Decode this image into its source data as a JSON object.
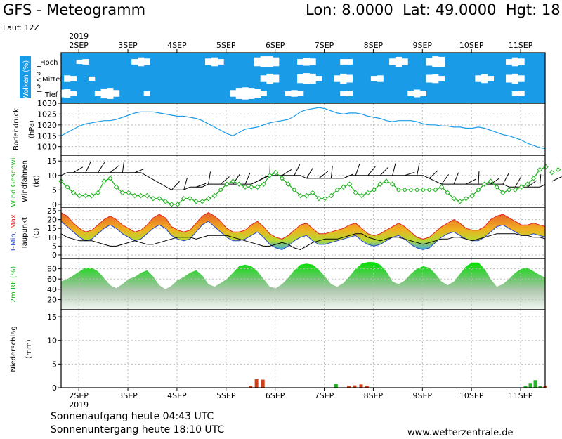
{
  "header": {
    "title": "GFS - Meteogramm",
    "coords": "Lon: 8.0000  Lat: 49.0000  Hgt: 18",
    "run": "Lauf: 12Z",
    "year": "2019"
  },
  "dates": [
    "2SEP",
    "3SEP",
    "4SEP",
    "5SEP",
    "6SEP",
    "7SEP",
    "8SEP",
    "9SEP",
    "10SEP",
    "11SEP"
  ],
  "footer": {
    "sunrise": "Sonnenaufgang heute 04:43 UTC",
    "sunset": "Sonnenuntergang heute 18:10 UTC",
    "site": "www.wetterzentrale.de"
  },
  "colors": {
    "cloud_bg": "#1a9be8",
    "pressure": "#1a9be8",
    "wind": "#22b422",
    "tmin": "#2244cc",
    "tmax": "#e02020",
    "precip_rain": "#d0401a",
    "precip_conv": "#22b422"
  },
  "chart_data": [
    {
      "type": "area",
      "panel": "clouds",
      "ylabel": "Wolken (%)",
      "yaxis_side_label": "Level",
      "levels": [
        "Hoch",
        "Mittel",
        "Tief"
      ],
      "x_start_day": 1.64,
      "x_step_h": 3,
      "clear_high": [
        0,
        0,
        0,
        0.2,
        0.3,
        0,
        0,
        0,
        0,
        0,
        0,
        0,
        0.3,
        0.6,
        0.4,
        0,
        0,
        0,
        0,
        0,
        0,
        0,
        0,
        0,
        0.4,
        0.6,
        0.3,
        0,
        0,
        0,
        0,
        0,
        0.6,
        0.8,
        0.8,
        0.6,
        0,
        0,
        0,
        0.3,
        0.5,
        0.4,
        0,
        0,
        0,
        0,
        0.3,
        0.3,
        0,
        0,
        0,
        0,
        0,
        0,
        0.4,
        0.7,
        0.4,
        0,
        0,
        0,
        0.5,
        0.8,
        0.7,
        0,
        0,
        0,
        0,
        0,
        0,
        0,
        0,
        0,
        0,
        0.3,
        0.6,
        0.4,
        0,
        0,
        0,
        0,
        0,
        0
      ],
      "clear_mid": [
        0,
        0.4,
        0.3,
        0,
        0,
        0.2,
        0,
        0,
        0,
        0,
        0,
        0,
        0,
        0,
        0,
        0,
        0,
        0,
        0,
        0,
        0,
        0,
        0,
        0,
        0,
        0,
        0,
        0,
        0,
        0,
        0,
        0,
        0,
        0.4,
        0.7,
        0.5,
        0,
        0,
        0,
        0.6,
        0.8,
        0.7,
        0.3,
        0,
        0,
        0.4,
        0.7,
        0.5,
        0,
        0,
        0,
        0.3,
        0.4,
        0,
        0,
        0,
        0,
        0,
        0,
        0,
        0.5,
        0.6,
        0.3,
        0,
        0,
        0,
        0,
        0,
        0.4,
        0.6,
        0.3,
        0,
        0,
        0.5,
        0.7,
        0.4,
        0,
        0,
        0,
        0,
        0,
        0
      ],
      "clear_low": [
        0.5,
        0.6,
        0.2,
        0,
        0,
        0,
        0.3,
        0.7,
        0.8,
        0.4,
        0,
        0,
        0,
        0,
        0.2,
        0,
        0,
        0,
        0,
        0,
        0,
        0,
        0,
        0,
        0,
        0,
        0,
        0,
        0.4,
        0.8,
        0.9,
        0.8,
        0.6,
        0.3,
        0,
        0,
        0,
        0.2,
        0.4,
        0.3,
        0,
        0,
        0,
        0,
        0,
        0,
        0.2,
        0.3,
        0,
        0,
        0,
        0,
        0,
        0,
        0,
        0,
        0,
        0.3,
        0.5,
        0.3,
        0,
        0,
        0,
        0,
        0,
        0,
        0,
        0,
        0,
        0,
        0,
        0,
        0,
        0,
        0.2,
        0.3,
        0,
        0,
        0,
        0,
        0.4,
        0.5
      ]
    },
    {
      "type": "line",
      "panel": "pressure",
      "ylabel": "Bodendruck",
      "ylabel2": "(hPa)",
      "ylim": [
        1006,
        1030
      ],
      "yticks": [
        1010,
        1015,
        1020,
        1025,
        1030
      ],
      "x_start_day": 1.64,
      "x_step_h": 3,
      "series": [
        {
          "values": [
            1015,
            1016.5,
            1018,
            1019.5,
            1020.5,
            1021,
            1021.5,
            1022,
            1022,
            1022.5,
            1023.5,
            1024.5,
            1025.5,
            1026,
            1026,
            1026,
            1025.5,
            1025,
            1024.5,
            1024,
            1024,
            1023.5,
            1023,
            1022,
            1020.5,
            1019,
            1017.5,
            1016,
            1015,
            1016.5,
            1018,
            1018.5,
            1019,
            1020,
            1021,
            1021.5,
            1022,
            1022.5,
            1024,
            1026,
            1027,
            1027.5,
            1028,
            1027.5,
            1026.5,
            1025.5,
            1025,
            1025.5,
            1025.5,
            1025,
            1024,
            1023.5,
            1023,
            1022,
            1021.5,
            1022,
            1022,
            1022,
            1021.5,
            1020.5,
            1020,
            1020,
            1019.5,
            1019.5,
            1019,
            1019,
            1018.5,
            1018.5,
            1019,
            1018.5,
            1017.5,
            1016.5,
            1015.5,
            1015,
            1014,
            1013,
            1011.5,
            1010.5,
            1009.5,
            1009,
            1009,
            1010,
            1011.5,
            1012
          ]
        }
      ]
    },
    {
      "type": "line",
      "panel": "wind",
      "ylabel": "Wind Geschwi.",
      "ylabel2": "Windfahnen",
      "ylabel3": "(kt)",
      "ylim": [
        -1,
        17
      ],
      "yticks": [
        0,
        5,
        10,
        15
      ],
      "x_start_day": 1.64,
      "x_step_h": 3,
      "series": [
        {
          "name": "Wind Geschwi.",
          "values": [
            8,
            6,
            4,
            3,
            3,
            3,
            4,
            8,
            9,
            6,
            4,
            4,
            3,
            3,
            3,
            2,
            2,
            1,
            0,
            0,
            2,
            2,
            1,
            1,
            2,
            3,
            5,
            7,
            8,
            7,
            6,
            6,
            6,
            7,
            10,
            11,
            9,
            7,
            5,
            3,
            3,
            4,
            2,
            2,
            3,
            5,
            6,
            7,
            4,
            3,
            4,
            5,
            7,
            8,
            7,
            5,
            5,
            5,
            5,
            5,
            5,
            5,
            6,
            4,
            2,
            1,
            2,
            3,
            5,
            7,
            8,
            6,
            4,
            5,
            5,
            6,
            7,
            9,
            12,
            13,
            11,
            12,
            15,
            16
          ]
        },
        {
          "name": "Windfahnen",
          "values": [
            10,
            11,
            11,
            11,
            11,
            11,
            11,
            11,
            11,
            11,
            11,
            11,
            11,
            11,
            null,
            null,
            null,
            null,
            5,
            5,
            5,
            6,
            6,
            6,
            7,
            7,
            7,
            7,
            7,
            7,
            7,
            7,
            8,
            9,
            10,
            10,
            10,
            10,
            10,
            10,
            9,
            9,
            9,
            9,
            9,
            9,
            9,
            10,
            10,
            10,
            10,
            10,
            10,
            10,
            10,
            10,
            10,
            10,
            10,
            10,
            9,
            8,
            7,
            7,
            7,
            7,
            7,
            7,
            7,
            7,
            7,
            7,
            7,
            6,
            6,
            6,
            6,
            6,
            6,
            7,
            8,
            8,
            8,
            8
          ]
        }
      ]
    },
    {
      "type": "area",
      "panel": "temperature",
      "ylabel": "T-Min, Max",
      "ylabel2": "Taupunkt",
      "ylabel3": "(C)",
      "ylim": [
        -2,
        27
      ],
      "yticks": [
        0,
        5,
        10,
        15,
        20,
        25
      ],
      "x_start_day": 1.64,
      "x_step_h": 3,
      "series": [
        {
          "name": "T-Min",
          "values": [
            23,
            20,
            17,
            14,
            12,
            13,
            16,
            19,
            21,
            19,
            16,
            14,
            12,
            13,
            16,
            19,
            21,
            19,
            15,
            13,
            12,
            13,
            17,
            21,
            23,
            20,
            17,
            14,
            12,
            12,
            13,
            15,
            17,
            14,
            10,
            8,
            7,
            9,
            12,
            14,
            15,
            12,
            10,
            10,
            11,
            12,
            13,
            14,
            15,
            12,
            10,
            9,
            10,
            12,
            14,
            15,
            13,
            10,
            8,
            7,
            8,
            11,
            14,
            16,
            17,
            15,
            13,
            12,
            12,
            14,
            17,
            20,
            21,
            19,
            17,
            15,
            15,
            16,
            15,
            14,
            13,
            13,
            14,
            15
          ]
        },
        {
          "name": "Max",
          "values": [
            24,
            22,
            18,
            15,
            13,
            14,
            17,
            20,
            22,
            20,
            17,
            15,
            13,
            14,
            17,
            21,
            23,
            21,
            16,
            14,
            13,
            14,
            18,
            22,
            24,
            22,
            19,
            15,
            13,
            13,
            14,
            17,
            19,
            16,
            12,
            10,
            9,
            11,
            14,
            17,
            18,
            15,
            12,
            12,
            13,
            14,
            15,
            17,
            18,
            15,
            12,
            11,
            12,
            14,
            16,
            18,
            16,
            13,
            10,
            9,
            10,
            13,
            16,
            18,
            20,
            18,
            15,
            14,
            14,
            16,
            20,
            22,
            23,
            21,
            19,
            17,
            17,
            18,
            17,
            16,
            15,
            15,
            16,
            17
          ]
        },
        {
          "name": "Taupunkt",
          "values": [
            12,
            10,
            9,
            8,
            8,
            8,
            7,
            6,
            5,
            5,
            6,
            7,
            8,
            7,
            6,
            6,
            7,
            8,
            9,
            10,
            10,
            10,
            9,
            10,
            11,
            11,
            11,
            11,
            10,
            9,
            8,
            7,
            6,
            5,
            5,
            6,
            7,
            6,
            4,
            3,
            5,
            7,
            8,
            9,
            9,
            9,
            10,
            11,
            12,
            12,
            10,
            9,
            8,
            9,
            10,
            10,
            9,
            8,
            7,
            6,
            7,
            8,
            9,
            9,
            10,
            10,
            9,
            8,
            9,
            10,
            11,
            12,
            12,
            12,
            12,
            11,
            11,
            10,
            10,
            9,
            9,
            8,
            8,
            9
          ]
        }
      ]
    },
    {
      "type": "area",
      "panel": "humidity",
      "ylabel": "2m RF (%)",
      "ylim": [
        0,
        100
      ],
      "yticks": [
        20,
        40,
        60,
        80
      ],
      "x_start_day": 1.64,
      "x_step_h": 3,
      "series": [
        {
          "values": [
            55,
            60,
            67,
            75,
            82,
            82,
            75,
            62,
            48,
            42,
            50,
            60,
            64,
            72,
            77,
            65,
            48,
            40,
            47,
            58,
            64,
            72,
            77,
            67,
            50,
            45,
            52,
            60,
            72,
            85,
            88,
            85,
            75,
            60,
            45,
            42,
            50,
            62,
            77,
            88,
            90,
            88,
            78,
            65,
            50,
            45,
            52,
            65,
            80,
            90,
            93,
            93,
            88,
            75,
            55,
            50,
            57,
            70,
            80,
            85,
            82,
            70,
            55,
            48,
            55,
            70,
            85,
            92,
            92,
            80,
            60,
            45,
            50,
            60,
            72,
            80,
            82,
            75,
            68,
            62,
            65,
            72,
            67,
            65
          ]
        }
      ]
    },
    {
      "type": "bar",
      "panel": "precipitation",
      "ylabel": "Niederschlag",
      "ylabel2": "(mm)",
      "ylim": [
        0,
        16.5
      ],
      "yticks": [
        0,
        5,
        10,
        15
      ],
      "bars": [
        {
          "day": 5.5,
          "value": 0.4,
          "kind": "rain"
        },
        {
          "day": 5.62,
          "value": 1.8,
          "kind": "rain"
        },
        {
          "day": 5.75,
          "value": 1.7,
          "kind": "rain"
        },
        {
          "day": 7.24,
          "value": 0.8,
          "kind": "conv"
        },
        {
          "day": 7.5,
          "value": 0.4,
          "kind": "rain"
        },
        {
          "day": 7.62,
          "value": 0.5,
          "kind": "rain"
        },
        {
          "day": 7.75,
          "value": 0.7,
          "kind": "rain"
        },
        {
          "day": 7.87,
          "value": 0.3,
          "kind": "rain"
        },
        {
          "day": 11.1,
          "value": 0.4,
          "kind": "conv"
        },
        {
          "day": 11.2,
          "value": 1.0,
          "kind": "conv"
        },
        {
          "day": 11.3,
          "value": 1.6,
          "kind": "conv"
        },
        {
          "day": 11.4,
          "value": 0.3,
          "kind": "conv"
        },
        {
          "day": 11.5,
          "value": 0.4,
          "kind": "rain"
        }
      ]
    }
  ]
}
